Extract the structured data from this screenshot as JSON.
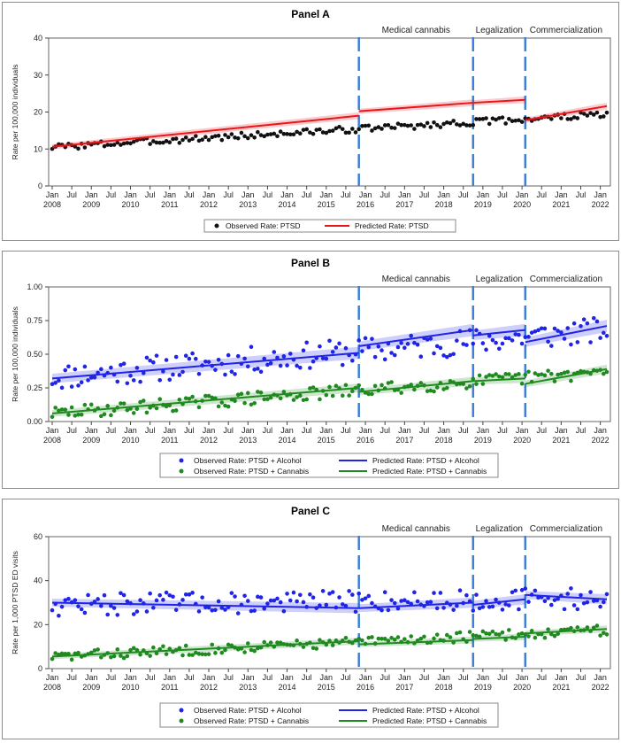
{
  "colors": {
    "black": "#111111",
    "red": "#e8161b",
    "blue": "#1f24e6",
    "green": "#1f8a1f",
    "interruption": "#3f7fd8"
  },
  "chart_data": [
    {
      "type": "scatter",
      "title": "Panel A",
      "ylabel": "Rate per 100,000 individuals",
      "ylim": [
        0,
        40
      ],
      "yticks": [
        0,
        10,
        20,
        30,
        40
      ],
      "x_tick_months": [
        "Jan",
        "Jul",
        "Jan",
        "Jul",
        "Jan",
        "Jul",
        "Jan",
        "Jul",
        "Jan",
        "Jul",
        "Jan",
        "Jul",
        "Jan",
        "Jul",
        "Jan",
        "Jul",
        "Jan",
        "Jul",
        "Jan",
        "Jul",
        "Jan",
        "Jul",
        "Jan",
        "Jul",
        "Jan",
        "Jul",
        "Jan",
        "Jul",
        "Jan"
      ],
      "x_tick_years": [
        "2008",
        "2009",
        "2010",
        "2011",
        "2012",
        "2013",
        "2014",
        "2015",
        "2016",
        "2017",
        "2018",
        "2019",
        "2020",
        "2021",
        "2022"
      ],
      "periods": [
        {
          "label": "Medical cannabis",
          "start": "2015-11"
        },
        {
          "label": "Legalization",
          "start": "2018-10"
        },
        {
          "label": "Commercialization",
          "start": "2020-02"
        }
      ],
      "x_end": "2022-03",
      "series": [
        {
          "name": "Observed Rate: PTSD",
          "kind": "points",
          "color": "black",
          "pattern": "ramp",
          "start": 10.5,
          "end": 19.4,
          "noise": 0.9,
          "seed": 3
        },
        {
          "name": "Predicted Rate: PTSD",
          "kind": "segments",
          "color": "red",
          "band": 0.7,
          "segments": [
            {
              "start": "2008-01",
              "end": "2015-11",
              "y0": 10.6,
              "y1": 19.0
            },
            {
              "start": "2015-11",
              "end": "2018-10",
              "y0": 20.2,
              "y1": 22.5
            },
            {
              "start": "2018-10",
              "end": "2020-02",
              "y0": 22.5,
              "y1": 23.3
            },
            {
              "start": "2020-02",
              "end": "2022-03",
              "y0": 17.8,
              "y1": 21.6
            }
          ]
        }
      ],
      "legend": [
        "Observed Rate: PTSD",
        "Predicted Rate: PTSD"
      ]
    },
    {
      "type": "scatter",
      "title": "Panel B",
      "ylabel": "Rate per 100,000 individuals",
      "ylim": [
        0,
        1
      ],
      "yticks": [
        0,
        0.25,
        0.5,
        0.75,
        1.0
      ],
      "ytick_labels": [
        "0.00",
        "0.25",
        "0.50",
        "0.75",
        "1.00"
      ],
      "x_tick_months": [
        "Jan",
        "Jul",
        "Jan",
        "Jul",
        "Jan",
        "Jul",
        "Jan",
        "Jul",
        "Jan",
        "Jul",
        "Jan",
        "Jul",
        "Jan",
        "Jul",
        "Jan",
        "Jul",
        "Jan",
        "Jul",
        "Jan",
        "Jul",
        "Jan",
        "Jul",
        "Jan",
        "Jul",
        "Jan",
        "Jul",
        "Jan",
        "Jul",
        "Jan"
      ],
      "x_tick_years": [
        "2008",
        "2009",
        "2010",
        "2011",
        "2012",
        "2013",
        "2014",
        "2015",
        "2016",
        "2017",
        "2018",
        "2019",
        "2020",
        "2021",
        "2022"
      ],
      "periods": [
        {
          "label": "Medical cannabis",
          "start": "2015-11"
        },
        {
          "label": "Legalization",
          "start": "2018-10"
        },
        {
          "label": "Commercialization",
          "start": "2020-02"
        }
      ],
      "x_end": "2022-03",
      "series": [
        {
          "name": "Observed Rate: PTSD + Alcohol",
          "kind": "points",
          "color": "blue",
          "pattern": "ramp",
          "start": 0.33,
          "end": 0.68,
          "noise": 0.1,
          "seed": 11
        },
        {
          "name": "Observed Rate: PTSD + Cannabis",
          "kind": "points",
          "color": "green",
          "pattern": "ramp",
          "start": 0.06,
          "end": 0.37,
          "noise": 0.05,
          "seed": 29
        },
        {
          "name": "Predicted Rate: PTSD + Alcohol",
          "kind": "segments",
          "color": "blue",
          "band": 0.035,
          "segments": [
            {
              "start": "2008-01",
              "end": "2015-11",
              "y0": 0.32,
              "y1": 0.51
            },
            {
              "start": "2015-11",
              "end": "2018-10",
              "y0": 0.56,
              "y1": 0.68
            },
            {
              "start": "2018-10",
              "end": "2020-02",
              "y0": 0.64,
              "y1": 0.68
            },
            {
              "start": "2020-02",
              "end": "2022-03",
              "y0": 0.59,
              "y1": 0.71
            }
          ]
        },
        {
          "name": "Predicted Rate: PTSD + Cannabis",
          "kind": "segments",
          "color": "green",
          "band": 0.025,
          "segments": [
            {
              "start": "2008-01",
              "end": "2015-11",
              "y0": 0.06,
              "y1": 0.25
            },
            {
              "start": "2015-11",
              "end": "2018-10",
              "y0": 0.22,
              "y1": 0.3
            },
            {
              "start": "2018-10",
              "end": "2020-02",
              "y0": 0.3,
              "y1": 0.32
            },
            {
              "start": "2020-02",
              "end": "2022-03",
              "y0": 0.28,
              "y1": 0.39
            }
          ]
        }
      ],
      "legend": [
        "Observed Rate: PTSD + Alcohol",
        "Predicted Rate: PTSD + Alcohol",
        "Observed Rate: PTSD + Cannabis",
        "Predicted Rate: PTSD + Cannabis"
      ]
    },
    {
      "type": "scatter",
      "title": "Panel C",
      "ylabel": "Rate per 1,000 PTSD ED visits",
      "ylim": [
        0,
        60
      ],
      "yticks": [
        0,
        20,
        40,
        60
      ],
      "x_tick_months": [
        "Jan",
        "Jul",
        "Jan",
        "Jul",
        "Jan",
        "Jul",
        "Jan",
        "Jul",
        "Jan",
        "Jul",
        "Jan",
        "Jul",
        "Jan",
        "Jul",
        "Jan",
        "Jul",
        "Jan",
        "Jul",
        "Jan",
        "Jul",
        "Jan",
        "Jul",
        "Jan",
        "Jul",
        "Jan",
        "Jul",
        "Jan",
        "Jul",
        "Jan"
      ],
      "x_tick_years": [
        "2008",
        "2009",
        "2010",
        "2011",
        "2012",
        "2013",
        "2014",
        "2015",
        "2016",
        "2017",
        "2018",
        "2019",
        "2020",
        "2021",
        "2022"
      ],
      "periods": [
        {
          "label": "Medical cannabis",
          "start": "2015-11"
        },
        {
          "label": "Legalization",
          "start": "2018-10"
        },
        {
          "label": "Commercialization",
          "start": "2020-02"
        }
      ],
      "x_end": "2022-03",
      "series": [
        {
          "name": "Observed Rate: PTSD + Alcohol",
          "kind": "points",
          "color": "blue",
          "pattern": "ramp",
          "start": 29,
          "end": 32,
          "noise": 5,
          "seed": 47
        },
        {
          "name": "Observed Rate: PTSD + Cannabis",
          "kind": "points",
          "color": "green",
          "pattern": "ramp",
          "start": 5.5,
          "end": 17.5,
          "noise": 2.4,
          "seed": 83
        },
        {
          "name": "Predicted Rate: PTSD + Alcohol",
          "kind": "segments",
          "color": "blue",
          "band": 1.8,
          "segments": [
            {
              "start": "2008-01",
              "end": "2015-11",
              "y0": 30,
              "y1": 27.5
            },
            {
              "start": "2015-11",
              "end": "2018-10",
              "y0": 27.5,
              "y1": 30
            },
            {
              "start": "2018-10",
              "end": "2020-02",
              "y0": 29,
              "y1": 31.5
            },
            {
              "start": "2020-02",
              "end": "2022-03",
              "y0": 33.5,
              "y1": 31.5
            }
          ]
        },
        {
          "name": "Predicted Rate: PTSD + Cannabis",
          "kind": "segments",
          "color": "green",
          "band": 1.2,
          "segments": [
            {
              "start": "2008-01",
              "end": "2015-11",
              "y0": 5.5,
              "y1": 12.5
            },
            {
              "start": "2015-11",
              "end": "2018-10",
              "y0": 11,
              "y1": 13
            },
            {
              "start": "2018-10",
              "end": "2020-02",
              "y0": 13.5,
              "y1": 14.5
            },
            {
              "start": "2020-02",
              "end": "2022-03",
              "y0": 16,
              "y1": 18
            }
          ]
        }
      ],
      "legend": [
        "Observed Rate: PTSD + Alcohol",
        "Predicted Rate: PTSD + Alcohol",
        "Observed Rate: PTSD + Cannabis",
        "Predicted Rate: PTSD + Cannabis"
      ]
    }
  ]
}
